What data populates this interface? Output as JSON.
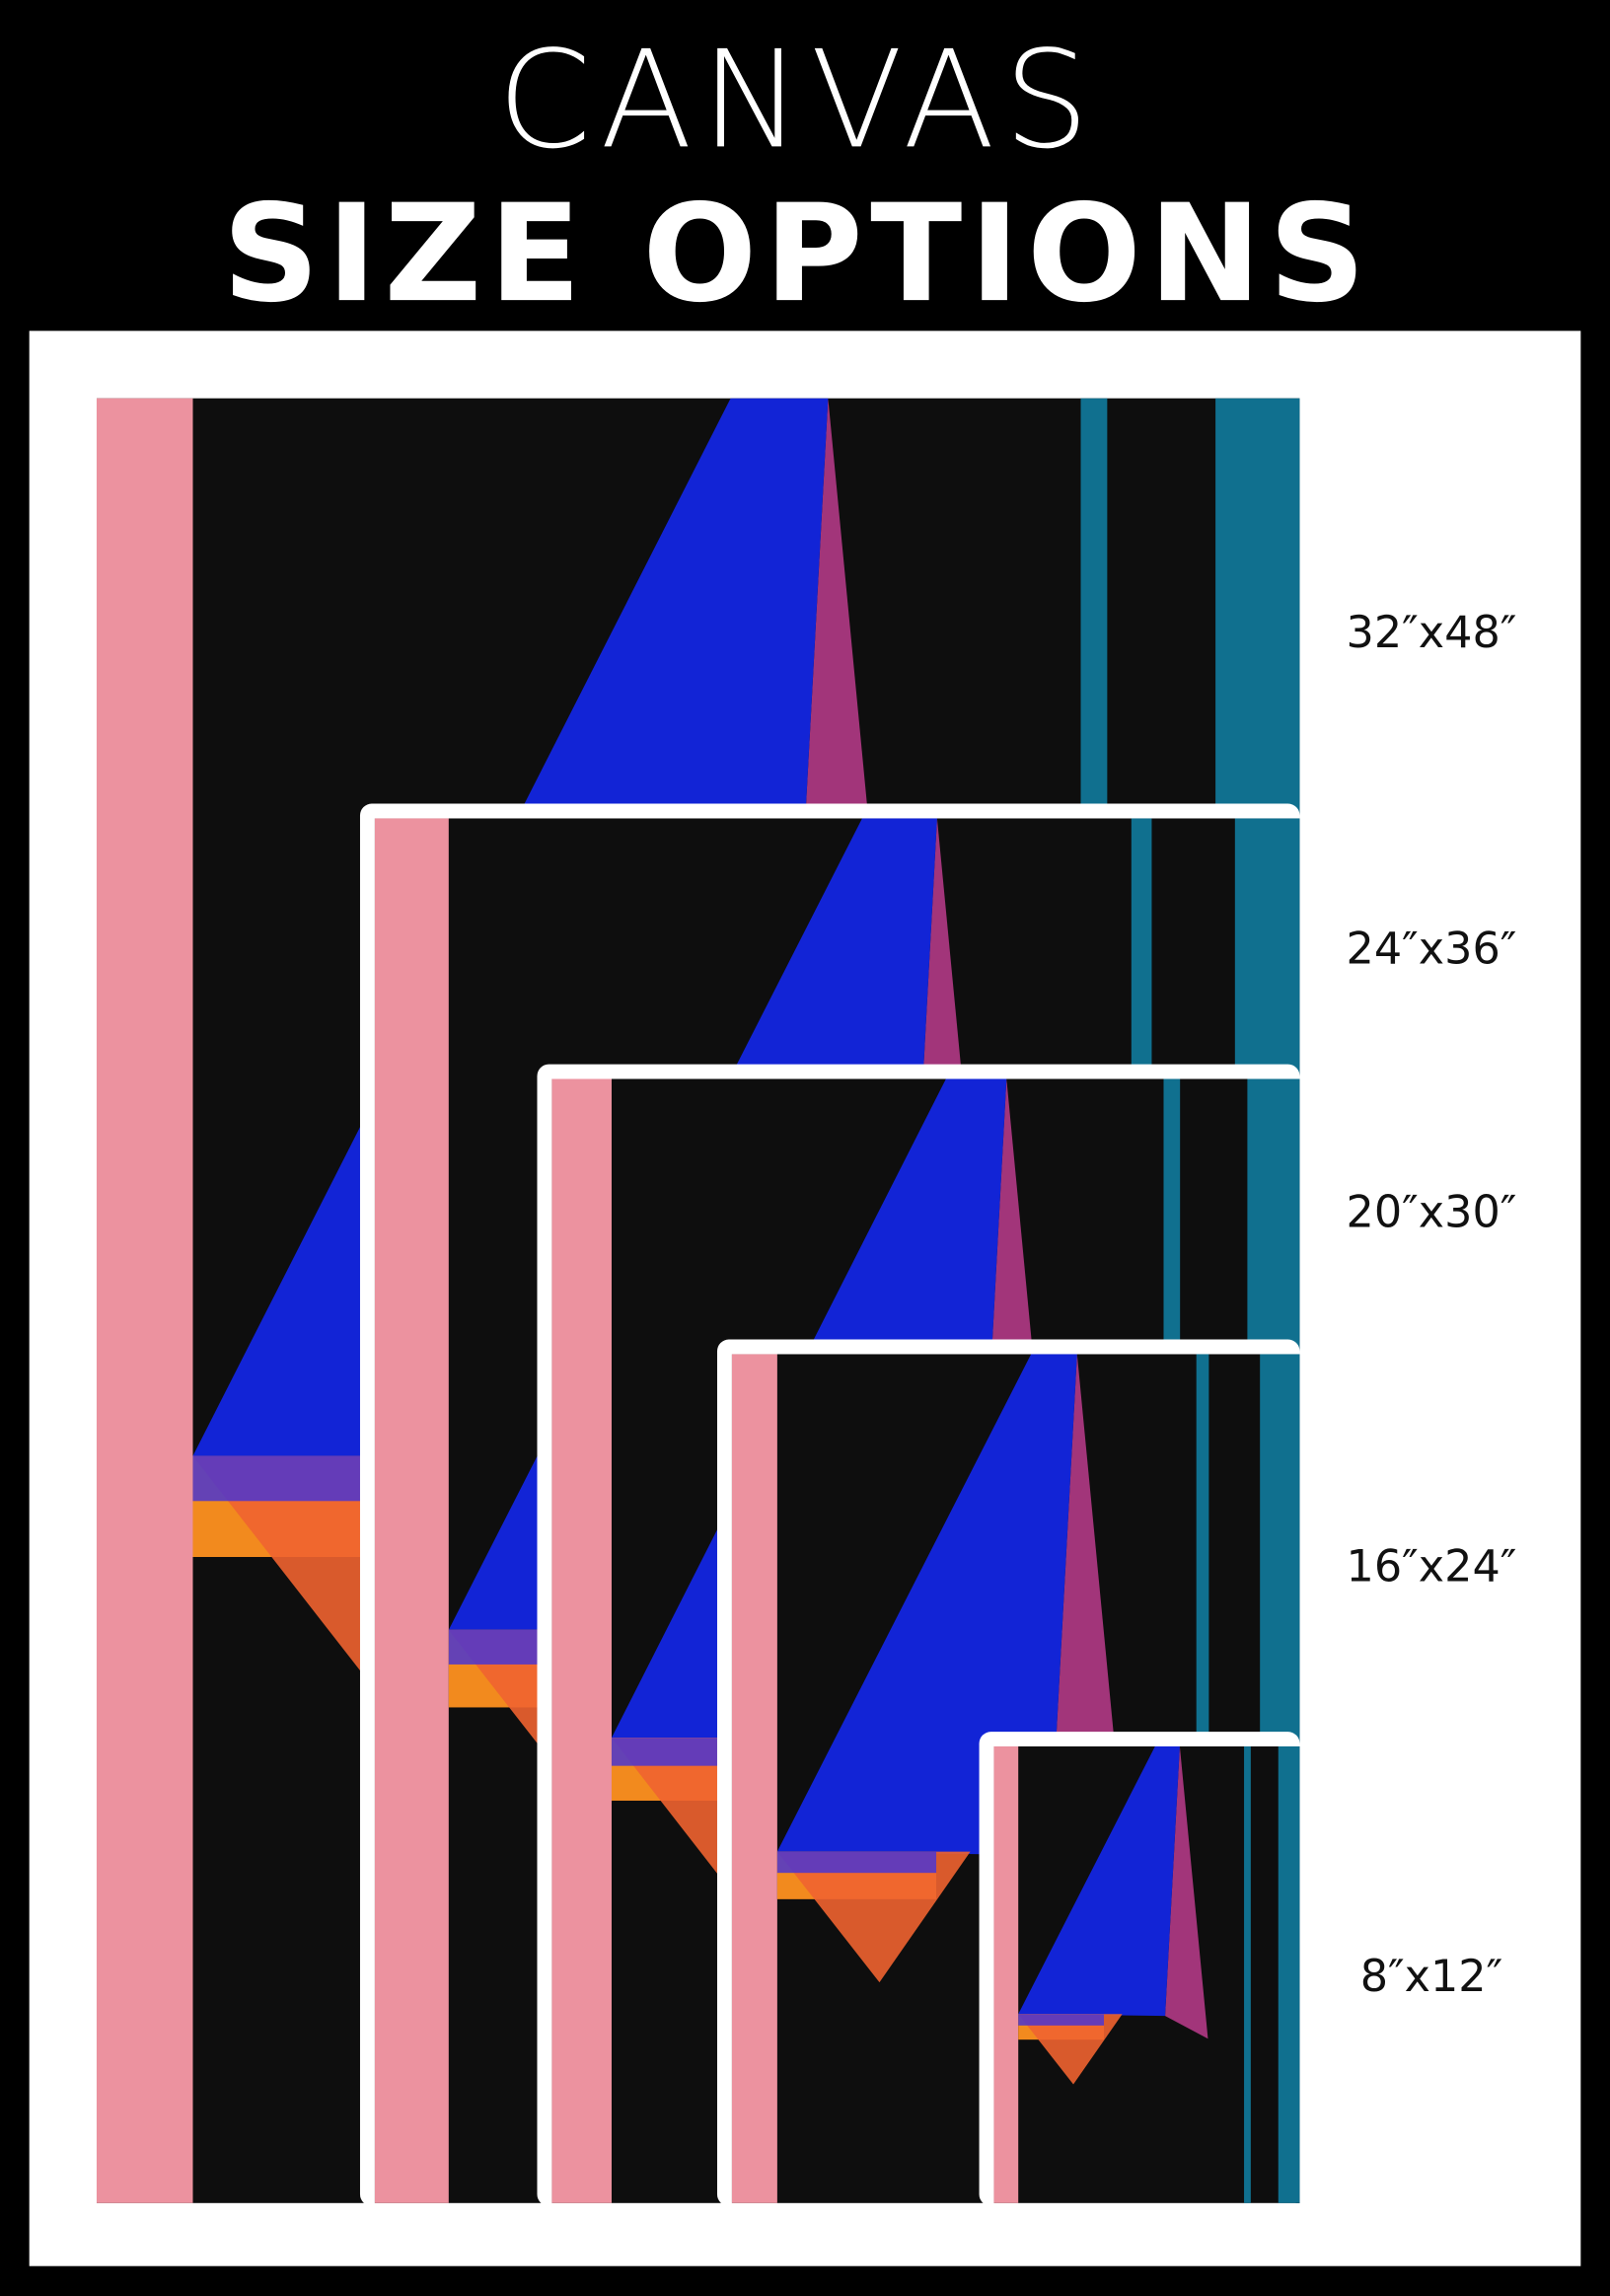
{
  "header": {
    "line1": "CANVAS",
    "line2": "SIZE OPTIONS"
  },
  "sizes": [
    "32″x48″",
    "24″x36″",
    "20″x30″",
    "16″x24″",
    "8″x12″"
  ]
}
